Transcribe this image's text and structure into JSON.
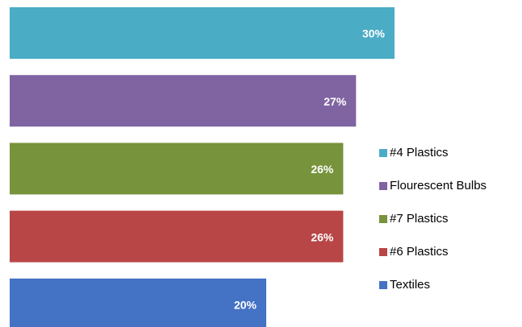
{
  "chart_data": {
    "type": "bar",
    "orientation": "horizontal",
    "categories": [
      "#4 Plastics",
      "Flourescent Bulbs",
      "#7 Plastics",
      "#6 Plastics",
      "Textiles"
    ],
    "values": [
      30,
      27,
      26,
      26,
      20
    ],
    "value_labels": [
      "30%",
      "27%",
      "26%",
      "26%",
      "20%"
    ],
    "colors": [
      "#4bacc6",
      "#8064a2",
      "#77933c",
      "#b94646",
      "#4472c4"
    ],
    "legend": "right"
  }
}
